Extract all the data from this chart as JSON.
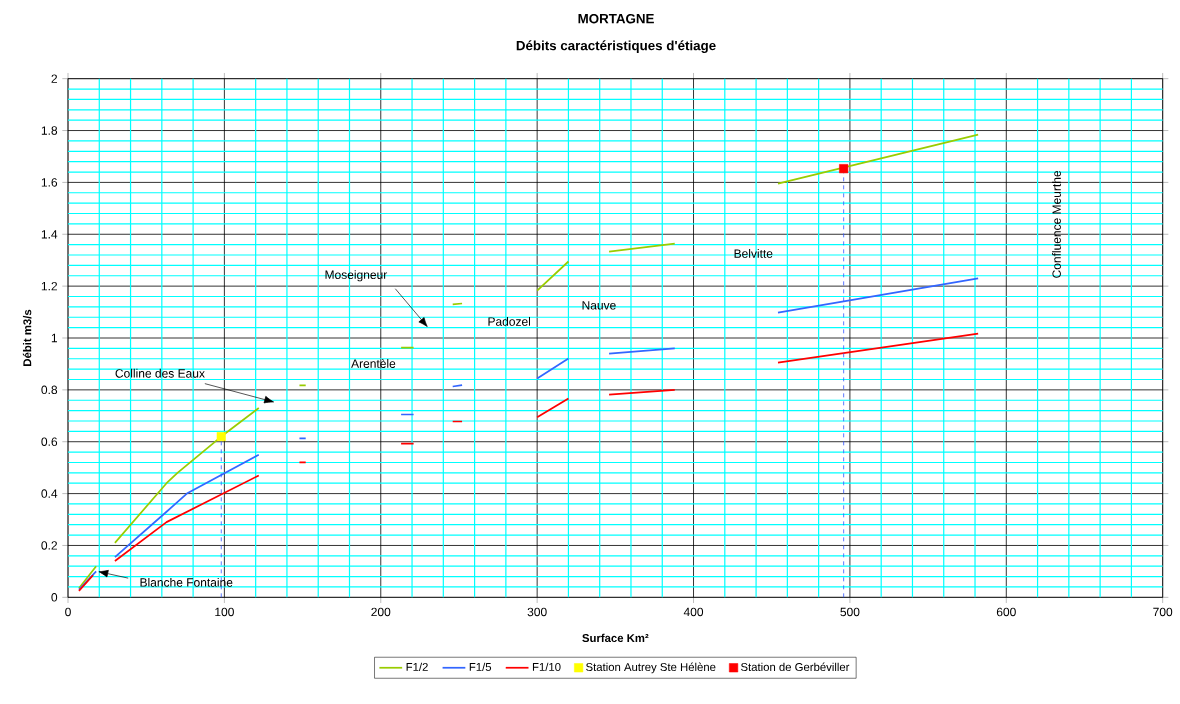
{
  "chart_data": {
    "type": "line",
    "title": "MORTAGNE",
    "subtitle": "Débits caractéristiques d'étiage",
    "xlabel": "Surface Km²",
    "ylabel": "Débit m3/s",
    "xlim": [
      0,
      700
    ],
    "xticks": [
      0,
      {
        "value": 20,
        "label": null
      },
      {
        "value": 40,
        "label": null
      },
      {
        "value": 60,
        "label": null
      },
      {
        "value": 80,
        "label": null
      },
      100,
      {
        "value": 120,
        "label": null
      },
      {
        "value": 140,
        "label": null
      },
      {
        "value": 160,
        "label": null
      },
      {
        "value": 180,
        "label": null
      },
      200,
      {
        "value": 220,
        "label": null
      },
      {
        "value": 240,
        "label": null
      },
      {
        "value": 260,
        "label": null
      },
      {
        "value": 280,
        "label": null
      },
      300,
      {
        "value": 320,
        "label": null
      },
      {
        "value": 340,
        "label": null
      },
      {
        "value": 360,
        "label": null
      },
      {
        "value": 380,
        "label": null
      },
      400,
      {
        "value": 420,
        "label": null
      },
      {
        "value": 440,
        "label": null
      },
      {
        "value": 460,
        "label": null
      },
      {
        "value": 480,
        "label": null
      },
      500,
      {
        "value": 520,
        "label": null
      },
      {
        "value": 540,
        "label": null
      },
      {
        "value": 560,
        "label": null
      },
      {
        "value": 580,
        "label": null
      },
      600,
      {
        "value": 620,
        "label": null
      },
      {
        "value": 640,
        "label": null
      },
      {
        "value": 660,
        "label": null
      },
      {
        "value": 680,
        "label": null
      },
      700
    ],
    "ylim": [
      0,
      2
    ],
    "yticks": [
      0,
      {
        "value": 0.04,
        "label": null
      },
      {
        "value": 0.08,
        "label": null
      },
      {
        "value": 0.12,
        "label": null
      },
      {
        "value": 0.16,
        "label": null
      },
      0.2,
      {
        "value": 0.24,
        "label": null
      },
      {
        "value": 0.28,
        "label": null
      },
      {
        "value": 0.32,
        "label": null
      },
      {
        "value": 0.36,
        "label": null
      },
      0.4,
      {
        "value": 0.44,
        "label": null
      },
      {
        "value": 0.48,
        "label": null
      },
      {
        "value": 0.52,
        "label": null
      },
      {
        "value": 0.56,
        "label": null
      },
      0.6,
      {
        "value": 0.64,
        "label": null
      },
      {
        "value": 0.68,
        "label": null
      },
      {
        "value": 0.72,
        "label": null
      },
      {
        "value": 0.76,
        "label": null
      },
      0.8,
      {
        "value": 0.84,
        "label": null
      },
      {
        "value": 0.88,
        "label": null
      },
      {
        "value": 0.92,
        "label": null
      },
      {
        "value": 0.96,
        "label": null
      },
      1,
      {
        "value": 1.04,
        "label": null
      },
      {
        "value": 1.08,
        "label": null
      },
      {
        "value": 1.12,
        "label": null
      },
      {
        "value": 1.16,
        "label": null
      },
      1.2,
      {
        "value": 1.24,
        "label": null
      },
      {
        "value": 1.28,
        "label": null
      },
      {
        "value": 1.32,
        "label": null
      },
      {
        "value": 1.36,
        "label": null
      },
      1.4,
      {
        "value": 1.44,
        "label": null
      },
      {
        "value": 1.48,
        "label": null
      },
      {
        "value": 1.52,
        "label": null
      },
      {
        "value": 1.56,
        "label": null
      },
      1.6,
      {
        "value": 1.64,
        "label": null
      },
      {
        "value": 1.68,
        "label": null
      },
      {
        "value": 1.72,
        "label": null
      },
      {
        "value": 1.76,
        "label": null
      },
      1.8,
      {
        "value": 1.84,
        "label": null
      },
      {
        "value": 1.88,
        "label": null
      },
      {
        "value": 1.92,
        "label": null
      },
      {
        "value": 1.96,
        "label": null
      },
      2
    ],
    "grid": true,
    "legend": "bottom",
    "marker": "none",
    "line_style": "solid",
    "series": [
      {
        "name": "F1/2",
        "color": "#99cc00",
        "x": [
          7,
          18,
          25,
          30,
          63,
          70,
          98,
          122,
          135,
          148,
          152,
          160,
          213,
          221,
          230,
          246,
          252,
          270,
          300,
          320,
          330,
          346,
          388,
          420,
          454,
          582
        ],
        "values": [
          0.035,
          0.12,
          null,
          0.21,
          0.44,
          0.48,
          0.62,
          0.73,
          null,
          0.817,
          0.817,
          null,
          0.963,
          0.963,
          null,
          1.13,
          1.133,
          null,
          1.183,
          1.295,
          null,
          1.333,
          1.364,
          null,
          1.595,
          1.784
        ]
      },
      {
        "name": "F1/5",
        "color": "#3366ff",
        "x": [
          7,
          18,
          25,
          30,
          63,
          76,
          122,
          135,
          148,
          152,
          160,
          213,
          221,
          230,
          246,
          252,
          270,
          300,
          320,
          330,
          346,
          388,
          420,
          454,
          582
        ],
        "values": [
          0.03,
          0.1,
          null,
          0.155,
          0.33,
          0.4,
          0.55,
          null,
          0.613,
          0.613,
          null,
          0.705,
          0.705,
          null,
          0.813,
          0.818,
          null,
          0.844,
          0.921,
          null,
          0.94,
          0.96,
          null,
          1.098,
          1.23
        ]
      },
      {
        "name": "F1/10",
        "color": "#ff0000",
        "x": [
          7,
          16,
          25,
          30,
          63,
          122,
          135,
          148,
          152,
          160,
          213,
          221,
          230,
          246,
          252,
          270,
          300,
          320,
          330,
          346,
          388,
          420,
          454,
          582
        ],
        "values": [
          0.025,
          0.085,
          null,
          0.14,
          0.29,
          0.47,
          null,
          0.52,
          0.52,
          null,
          0.593,
          0.593,
          null,
          0.678,
          0.678,
          null,
          0.694,
          0.767,
          null,
          0.782,
          0.8,
          null,
          0.905,
          1.017
        ]
      },
      {
        "type": "line",
        "line_style": "dashed",
        "color": "#3355ff",
        "x": [
          98,
          98
        ],
        "values": [
          0,
          0.62
        ]
      },
      {
        "type": "line",
        "line_style": "dashed",
        "color": "#3355ff",
        "x": [
          496,
          496
        ],
        "values": [
          0,
          1.653
        ]
      },
      {
        "name": "Station Autrey Ste Hélène",
        "type": "scatter",
        "marker": "square",
        "color": "#ffff00",
        "x": [
          98
        ],
        "values": [
          0.62
        ]
      },
      {
        "name": "Station de Gerbéviller",
        "type": "scatter",
        "marker": "square",
        "color": "#ff0000",
        "x": [
          496
        ],
        "values": [
          1.653
        ]
      }
    ],
    "annotations": [
      "Blanche Fontaine",
      "Colline des Eaux",
      "Moseigneur",
      "Arentèle",
      "Padozel",
      "Nauve",
      "Belvitte",
      "Confluence Meurthe"
    ]
  }
}
